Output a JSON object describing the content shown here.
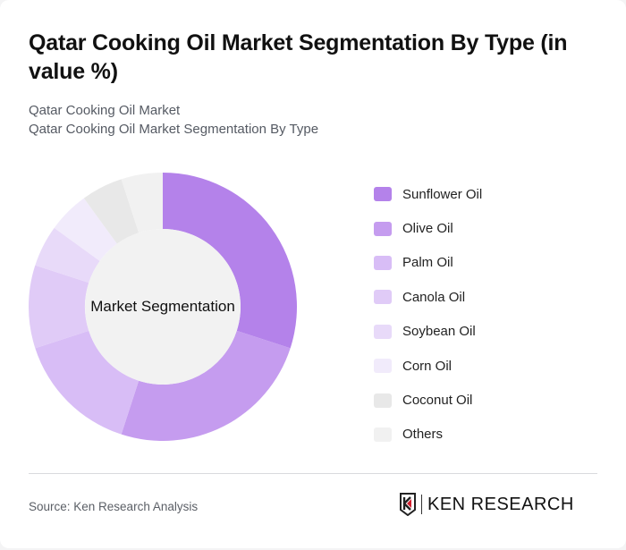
{
  "header": {
    "title": "Qatar Cooking Oil Market Segmentation By Type (in value %)",
    "subtitle_line1": "Qatar Cooking Oil Market",
    "subtitle_line2": "Qatar Cooking Oil Market Segmentation By Type"
  },
  "chart_center_label": "Market Segmentation",
  "legend": [
    {
      "label": "Sunflower Oil",
      "color": "#b482ea"
    },
    {
      "label": "Olive Oil",
      "color": "#c59cef"
    },
    {
      "label": "Palm Oil",
      "color": "#d8bdf6"
    },
    {
      "label": "Canola Oil",
      "color": "#e0cbf7"
    },
    {
      "label": "Soybean Oil",
      "color": "#e8daf9"
    },
    {
      "label": "Corn Oil",
      "color": "#f1ebfb"
    },
    {
      "label": "Coconut Oil",
      "color": "#e8e8e8"
    },
    {
      "label": "Others",
      "color": "#f1f1f1"
    }
  ],
  "chart_data": {
    "type": "pie",
    "variant": "donut",
    "title": "Qatar Cooking Oil Market Segmentation By Type (in value %)",
    "center_label": "Market Segmentation",
    "categories": [
      "Sunflower Oil",
      "Olive Oil",
      "Palm Oil",
      "Canola Oil",
      "Soybean Oil",
      "Corn Oil",
      "Coconut Oil",
      "Others"
    ],
    "values": [
      30,
      25,
      15,
      10,
      5,
      5,
      5,
      5
    ],
    "colors": [
      "#b482ea",
      "#c59cef",
      "#d8bdf6",
      "#e0cbf7",
      "#e8daf9",
      "#f1ebfb",
      "#e8e8e8",
      "#f1f1f1"
    ],
    "legend_position": "right",
    "start_angle_deg": 0,
    "direction": "clockwise"
  },
  "footer": {
    "source": "Source: Ken Research Analysis",
    "logo_text": "KEN RESEARCH"
  }
}
